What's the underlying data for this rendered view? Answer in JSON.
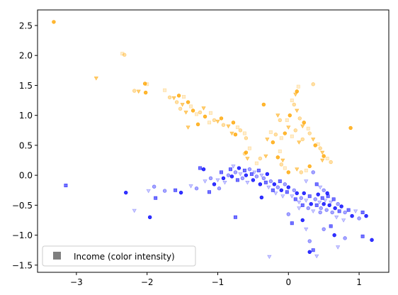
{
  "chart_data": {
    "type": "scatter",
    "title": "",
    "xlabel": "",
    "ylabel": "",
    "xlim": [
      -3.55,
      1.42
    ],
    "ylim": [
      -1.62,
      2.76
    ],
    "xticks": [
      -3,
      -2,
      -1,
      0,
      1
    ],
    "yticks": [
      -1.5,
      -1.0,
      -0.5,
      0.0,
      0.5,
      1.0,
      1.5,
      2.0,
      2.5
    ],
    "xtick_labels": [
      "−3",
      "−2",
      "−1",
      "0",
      "1"
    ],
    "ytick_labels": [
      "−1.5",
      "−1.0",
      "−0.5",
      "0.0",
      "0.5",
      "1.0",
      "1.5",
      "2.0",
      "2.5"
    ],
    "grid": false,
    "legend": {
      "position": "lower-left",
      "entries": [
        "Income (color intensity)"
      ]
    },
    "colors": {
      "group_a": "#ffa500",
      "group_b": "#0000ff",
      "legend_marker": "#7f7f7f"
    },
    "series": [
      {
        "color": "#ffa500",
        "points": [
          [
            -3.32,
            2.56
          ],
          [
            -2.35,
            2.03
          ],
          [
            -2.32,
            2.01
          ],
          [
            -2.72,
            1.62
          ],
          [
            -2.03,
            1.53
          ],
          [
            -2.0,
            1.52
          ],
          [
            -2.18,
            1.41
          ],
          [
            -2.12,
            1.4
          ],
          [
            -2.02,
            1.38
          ],
          [
            -1.75,
            1.42
          ],
          [
            -1.68,
            1.3
          ],
          [
            -1.62,
            1.29
          ],
          [
            -1.55,
            1.33
          ],
          [
            -1.48,
            1.31
          ],
          [
            -1.58,
            1.22
          ],
          [
            -1.5,
            1.18
          ],
          [
            -1.42,
            1.22
          ],
          [
            -1.38,
            1.15
          ],
          [
            -1.53,
            1.11
          ],
          [
            -1.45,
            1.05
          ],
          [
            -1.35,
            1.08
          ],
          [
            -1.3,
            1.02
          ],
          [
            -1.25,
            1.05
          ],
          [
            -1.2,
            1.12
          ],
          [
            -1.18,
            0.98
          ],
          [
            -1.1,
            1.04
          ],
          [
            -1.05,
            0.92
          ],
          [
            -1.0,
            0.9
          ],
          [
            -0.95,
            0.95
          ],
          [
            -1.12,
            0.88
          ],
          [
            -0.92,
            0.84
          ],
          [
            -0.85,
            0.82
          ],
          [
            -0.78,
            0.88
          ],
          [
            -0.72,
            0.8
          ],
          [
            -0.68,
            0.75
          ],
          [
            -0.8,
            0.7
          ],
          [
            -0.75,
            0.68
          ],
          [
            -0.62,
            0.7
          ],
          [
            -0.6,
            0.62
          ],
          [
            -1.42,
            0.8
          ],
          [
            -1.28,
            0.85
          ],
          [
            -0.55,
            0.45
          ],
          [
            -0.62,
            0.36
          ],
          [
            -0.58,
            0.28
          ],
          [
            -0.6,
            0.38
          ],
          [
            0.05,
            1.25
          ],
          [
            0.08,
            1.18
          ],
          [
            0.1,
            1.35
          ],
          [
            0.12,
            1.4
          ],
          [
            0.14,
            1.48
          ],
          [
            0.35,
            1.52
          ],
          [
            0.12,
            1.08
          ],
          [
            0.02,
            1.0
          ],
          [
            -0.02,
            0.92
          ],
          [
            0.16,
            0.95
          ],
          [
            0.2,
            0.82
          ],
          [
            0.22,
            0.88
          ],
          [
            0.28,
            0.78
          ],
          [
            -0.12,
            0.92
          ],
          [
            -0.15,
            1.0
          ],
          [
            -0.35,
            1.18
          ],
          [
            -0.25,
            0.72
          ],
          [
            -0.18,
            0.68
          ],
          [
            -0.3,
            0.6
          ],
          [
            -0.22,
            0.55
          ],
          [
            -0.1,
            0.62
          ],
          [
            0.3,
            0.7
          ],
          [
            0.35,
            0.6
          ],
          [
            0.38,
            0.5
          ],
          [
            0.42,
            0.52
          ],
          [
            0.45,
            0.45
          ],
          [
            0.48,
            0.38
          ],
          [
            0.88,
            0.79
          ],
          [
            -0.45,
            0.2
          ],
          [
            -0.4,
            0.28
          ],
          [
            -0.32,
            0.32
          ],
          [
            0.5,
            0.32
          ],
          [
            0.55,
            0.28
          ],
          [
            0.6,
            0.22
          ],
          [
            0.48,
            0.25
          ],
          [
            0.3,
            0.15
          ],
          [
            0.25,
            0.08
          ],
          [
            0.18,
            0.05
          ],
          [
            0.12,
            0.1
          ],
          [
            0.0,
            0.05
          ],
          [
            -0.05,
            0.12
          ],
          [
            -0.1,
            0.18
          ],
          [
            -0.08,
            0.25
          ],
          [
            -0.15,
            0.3
          ],
          [
            -0.12,
            0.4
          ],
          [
            0.1,
            0.75
          ],
          [
            0.0,
            0.8
          ],
          [
            -0.05,
            0.7
          ],
          [
            0.05,
            0.65
          ],
          [
            0.2,
            0.6
          ],
          [
            0.15,
            0.55
          ]
        ]
      },
      {
        "color": "#0000ff",
        "points": [
          [
            -3.15,
            -0.17
          ],
          [
            -2.3,
            -0.29
          ],
          [
            -1.98,
            -0.26
          ],
          [
            -1.9,
            -0.19
          ],
          [
            -1.88,
            -0.38
          ],
          [
            -1.96,
            -0.7
          ],
          [
            -2.18,
            -0.59
          ],
          [
            -1.75,
            -0.26
          ],
          [
            -1.6,
            -0.25
          ],
          [
            -1.52,
            -0.29
          ],
          [
            -1.38,
            -0.18
          ],
          [
            -1.3,
            -0.22
          ],
          [
            -1.25,
            0.12
          ],
          [
            -1.2,
            0.1
          ],
          [
            -1.18,
            -0.1
          ],
          [
            -1.1,
            -0.05
          ],
          [
            -1.12,
            -0.28
          ],
          [
            -1.05,
            -0.15
          ],
          [
            -1.0,
            -0.08
          ],
          [
            -0.98,
            -0.22
          ],
          [
            -0.95,
            0.05
          ],
          [
            -0.92,
            -0.05
          ],
          [
            -0.9,
            -0.12
          ],
          [
            -0.85,
            0.0
          ],
          [
            -0.82,
            0.1
          ],
          [
            -0.8,
            -0.02
          ],
          [
            -0.78,
            0.15
          ],
          [
            -0.75,
            0.05
          ],
          [
            -0.72,
            -0.08
          ],
          [
            -0.7,
            0.12
          ],
          [
            -0.68,
            0.02
          ],
          [
            -0.65,
            -0.05
          ],
          [
            -0.62,
            0.08
          ],
          [
            -0.6,
            0.0
          ],
          [
            -0.58,
            -0.12
          ],
          [
            -0.55,
            0.1
          ],
          [
            -0.52,
            0.02
          ],
          [
            -0.5,
            -0.08
          ],
          [
            -0.48,
            0.05
          ],
          [
            -0.45,
            -0.02
          ],
          [
            -0.42,
            0.08
          ],
          [
            -0.4,
            -0.15
          ],
          [
            -0.38,
            0.0
          ],
          [
            -0.35,
            -0.05
          ],
          [
            -0.32,
            -0.12
          ],
          [
            -0.3,
            0.02
          ],
          [
            -0.28,
            -0.2
          ],
          [
            -0.25,
            -0.1
          ],
          [
            -0.22,
            -0.25
          ],
          [
            -0.2,
            -0.15
          ],
          [
            -0.18,
            -0.3
          ],
          [
            -0.15,
            -0.2
          ],
          [
            -0.12,
            -0.1
          ],
          [
            -0.1,
            -0.25
          ],
          [
            -0.08,
            -0.35
          ],
          [
            -0.05,
            -0.15
          ],
          [
            -0.02,
            -0.28
          ],
          [
            0.0,
            -0.2
          ],
          [
            0.05,
            -0.35
          ],
          [
            0.08,
            -0.25
          ],
          [
            0.1,
            -0.4
          ],
          [
            0.12,
            -0.3
          ],
          [
            0.15,
            -0.45
          ],
          [
            0.18,
            -0.38
          ],
          [
            0.2,
            -0.5
          ],
          [
            0.22,
            -0.3
          ],
          [
            0.25,
            -0.42
          ],
          [
            0.28,
            -0.55
          ],
          [
            0.3,
            -0.35
          ],
          [
            0.32,
            -0.48
          ],
          [
            0.35,
            -0.6
          ],
          [
            0.38,
            -0.4
          ],
          [
            0.4,
            -0.5
          ],
          [
            0.42,
            -0.32
          ],
          [
            0.44,
            -0.45
          ],
          [
            0.46,
            -0.55
          ],
          [
            0.48,
            -0.38
          ],
          [
            0.5,
            -0.48
          ],
          [
            0.52,
            -0.42
          ],
          [
            0.54,
            -0.58
          ],
          [
            0.56,
            -0.35
          ],
          [
            0.58,
            -0.5
          ],
          [
            0.6,
            -0.45
          ],
          [
            0.62,
            -0.62
          ],
          [
            0.64,
            -0.4
          ],
          [
            0.66,
            -0.55
          ],
          [
            0.68,
            -0.7
          ],
          [
            0.7,
            -0.48
          ],
          [
            0.72,
            -0.6
          ],
          [
            0.75,
            -0.52
          ],
          [
            0.78,
            -0.75
          ],
          [
            0.8,
            -0.62
          ],
          [
            0.85,
            -0.58
          ],
          [
            0.9,
            -0.68
          ],
          [
            0.95,
            -0.6
          ],
          [
            1.0,
            -0.72
          ],
          [
            1.05,
            -0.62
          ],
          [
            1.1,
            -0.68
          ],
          [
            0.45,
            -0.2
          ],
          [
            0.5,
            -0.25
          ],
          [
            0.4,
            -0.15
          ],
          [
            0.55,
            -0.3
          ],
          [
            0.25,
            -0.1
          ],
          [
            0.35,
            0.05
          ],
          [
            -0.75,
            -0.7
          ],
          [
            -0.38,
            -0.37
          ],
          [
            -0.27,
            -1.36
          ],
          [
            0.0,
            -0.65
          ],
          [
            0.05,
            -0.8
          ],
          [
            0.2,
            -0.75
          ],
          [
            0.25,
            -0.9
          ],
          [
            0.3,
            -1.1
          ],
          [
            0.35,
            -1.25
          ],
          [
            0.3,
            -1.28
          ],
          [
            0.4,
            -1.35
          ],
          [
            0.5,
            -0.9
          ],
          [
            0.6,
            -0.85
          ],
          [
            0.65,
            -1.0
          ],
          [
            0.7,
            -1.2
          ],
          [
            0.8,
            -1.05
          ],
          [
            1.05,
            -1.02
          ],
          [
            1.18,
            -1.08
          ],
          [
            0.15,
            -0.55
          ],
          [
            0.45,
            -0.62
          ]
        ]
      }
    ]
  }
}
